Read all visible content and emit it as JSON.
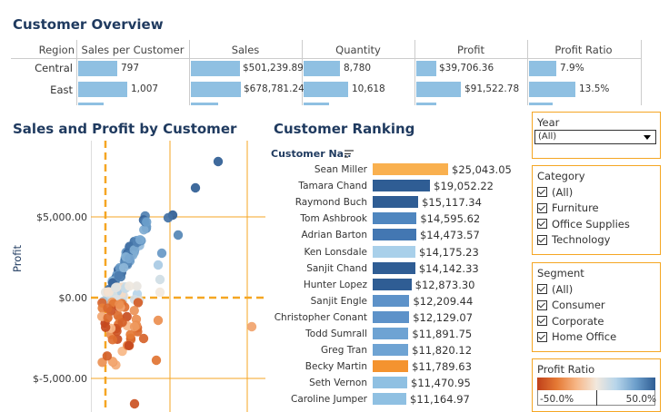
{
  "overview": {
    "title": "Customer Overview",
    "headers": [
      "Region",
      "Sales per Customer",
      "Sales",
      "Quantity",
      "Profit",
      "Profit Ratio"
    ],
    "rows": [
      {
        "region": "Central",
        "spc": "797",
        "spc_v": 797,
        "sales": "$501,239.89",
        "sales_v": 501239.89,
        "qty": "8,780",
        "qty_v": 8780,
        "profit": "$39,706.36",
        "profit_v": 39706.36,
        "ratio": "7.9%",
        "ratio_v": 7.9
      },
      {
        "region": "East",
        "spc": "1,007",
        "spc_v": 1007,
        "sales": "$678,781.24",
        "sales_v": 678781.24,
        "qty": "10,618",
        "qty_v": 10618,
        "profit": "$91,522.78",
        "profit_v": 91522.78,
        "ratio": "13.5%",
        "ratio_v": 13.5
      }
    ]
  },
  "scatter": {
    "title": "Sales and Profit by Customer",
    "ylabel": "Profit",
    "yticks": [
      "$5,000.00",
      "$0.00",
      "$-5,000.00"
    ]
  },
  "ranking": {
    "title": "Customer Ranking",
    "column_header": "Customer Na..",
    "rows": [
      {
        "name": "Sean Miller",
        "value": "$25,043.05",
        "v": 25043.05,
        "color": "#f9b04f"
      },
      {
        "name": "Tamara Chand",
        "value": "$19,052.22",
        "v": 19052.22,
        "color": "#2f5d94"
      },
      {
        "name": "Raymond Buch",
        "value": "$15,117.34",
        "v": 15117.34,
        "color": "#2f5d94"
      },
      {
        "name": "Tom Ashbrook",
        "value": "$14,595.62",
        "v": 14595.62,
        "color": "#4f86bf"
      },
      {
        "name": "Adrian Barton",
        "value": "$14,473.57",
        "v": 14473.57,
        "color": "#4377b2"
      },
      {
        "name": "Ken Lonsdale",
        "value": "$14,175.23",
        "v": 14175.23,
        "color": "#a9d0ea"
      },
      {
        "name": "Sanjit Chand",
        "value": "$14,142.33",
        "v": 14142.33,
        "color": "#2f5d94"
      },
      {
        "name": "Hunter Lopez",
        "value": "$12,873.30",
        "v": 12873.3,
        "color": "#2f5d94"
      },
      {
        "name": "Sanjit Engle",
        "value": "$12,209.44",
        "v": 12209.44,
        "color": "#5d92c9"
      },
      {
        "name": "Christopher Conant",
        "value": "$12,129.07",
        "v": 12129.07,
        "color": "#5d92c9"
      },
      {
        "name": "Todd Sumrall",
        "value": "$11,891.75",
        "v": 11891.75,
        "color": "#6ea3d3"
      },
      {
        "name": "Greg Tran",
        "value": "$11,820.12",
        "v": 11820.12,
        "color": "#6ea3d3"
      },
      {
        "name": "Becky Martin",
        "value": "$11,789.63",
        "v": 11789.63,
        "color": "#f4932f"
      },
      {
        "name": "Seth Vernon",
        "value": "$11,470.95",
        "v": 11470.95,
        "color": "#8fc0e2"
      },
      {
        "name": "Caroline Jumper",
        "value": "$11,164.97",
        "v": 11164.97,
        "color": "#8fc0e2"
      }
    ]
  },
  "filters": {
    "year": {
      "title": "Year",
      "value": "(All)"
    },
    "category": {
      "title": "Category",
      "items": [
        "(All)",
        "Furniture",
        "Office Supplies",
        "Technology"
      ]
    },
    "segment": {
      "title": "Segment",
      "items": [
        "(All)",
        "Consumer",
        "Corporate",
        "Home Office"
      ]
    },
    "profit_ratio": {
      "title": "Profit Ratio",
      "min": "-50.0%",
      "max": "50.0%"
    }
  },
  "colors": {
    "accent_orange": "#f5a623",
    "title_blue": "#1f3a5f",
    "bar_blue": "#8fc0e2"
  }
}
